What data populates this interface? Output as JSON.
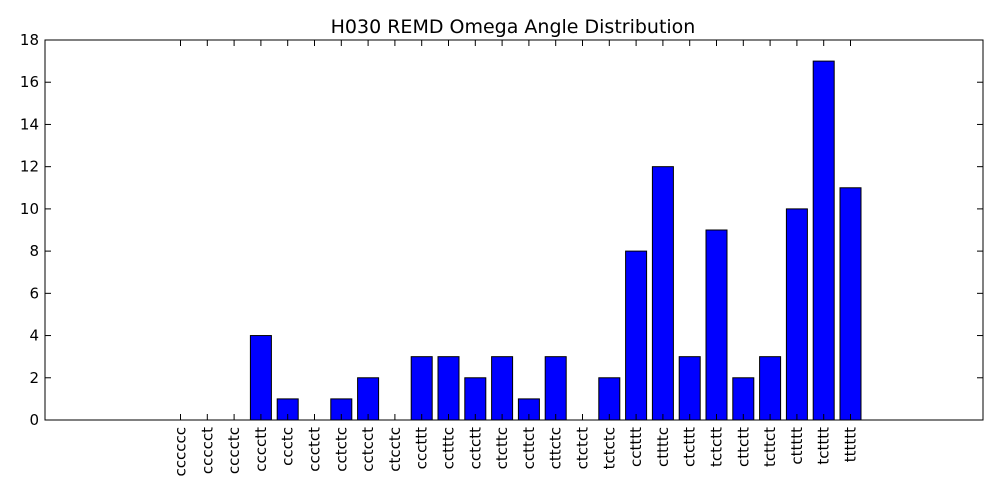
{
  "chart_data": {
    "type": "bar",
    "title": "H030 REMD Omega Angle Distribution",
    "xlabel": "",
    "ylabel": "",
    "ylim": [
      0,
      18
    ],
    "yticks": [
      0,
      2,
      4,
      6,
      8,
      10,
      12,
      14,
      16,
      18
    ],
    "grid": false,
    "legend": "none",
    "bar_color": "#0000ff",
    "categories": [
      "cccccc",
      "ccccct",
      "cccctc",
      "cccctt",
      "ccctc",
      "ccctct",
      "cctctc",
      "cctcct",
      "ctcctc",
      "cccttt",
      "cctttc",
      "cctctt",
      "ctcttc",
      "ccttct",
      "cttctc",
      "ctctct",
      "tctctc",
      "cctttt",
      "cttttc",
      "ctcttt",
      "tctctt",
      "cttctt",
      "tcttct",
      "cttttt",
      "tctttt",
      "tttttt"
    ],
    "values": [
      0,
      0,
      0,
      4,
      1,
      0,
      1,
      2,
      0,
      3,
      3,
      2,
      3,
      1,
      3,
      0,
      2,
      8,
      12,
      3,
      9,
      2,
      3,
      10,
      17,
      11
    ]
  }
}
